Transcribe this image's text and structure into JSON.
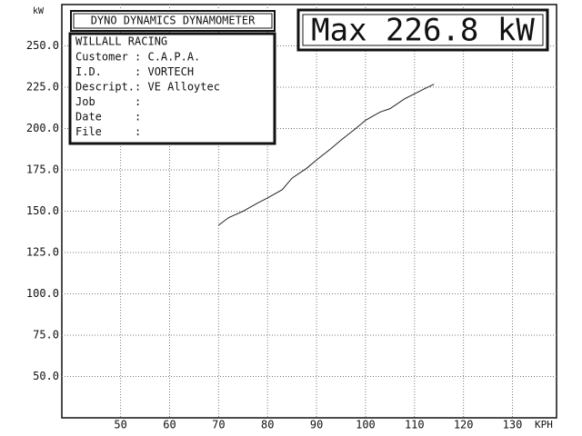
{
  "header": {
    "title": "DYNO DYNAMICS DYNAMOMETER",
    "company": "WILLALL RACING",
    "fields": [
      "Customer : C.A.P.A.",
      "I.D.     : VORTECH",
      "Descript.: VE Alloytec",
      "Job      :",
      "Date     :",
      "File     :"
    ],
    "max_label": "Max 226.8 kW"
  },
  "chart_data": {
    "type": "line",
    "y_label": "kW",
    "x_label": "KPH",
    "x": [
      70,
      72,
      75,
      78,
      80,
      83,
      85,
      88,
      90,
      93,
      95,
      98,
      100,
      103,
      105,
      108,
      110,
      112,
      114
    ],
    "series": [
      {
        "color": "#222222",
        "values": [
          141.5,
          146,
          150,
          155,
          158,
          163,
          170,
          176,
          181,
          188,
          193,
          200,
          205,
          210,
          212,
          218,
          221,
          224,
          226.8
        ]
      }
    ],
    "xlim": [
      38,
      139
    ],
    "xticks": [
      50,
      60,
      70,
      80,
      90,
      100,
      110,
      120,
      130
    ],
    "ylim": [
      25,
      275
    ],
    "yticks": [
      {
        "value": 50,
        "label": "50.0"
      },
      {
        "value": 75,
        "label": "75.0"
      },
      {
        "value": 100,
        "label": "100.0"
      },
      {
        "value": 125,
        "label": "125.0"
      },
      {
        "value": 150,
        "label": "150.0"
      },
      {
        "value": 175,
        "label": "175.0"
      },
      {
        "value": 200,
        "label": "200.0"
      },
      {
        "value": 225,
        "label": "225.0"
      },
      {
        "value": 250,
        "label": "250.0"
      }
    ],
    "grid": true
  }
}
